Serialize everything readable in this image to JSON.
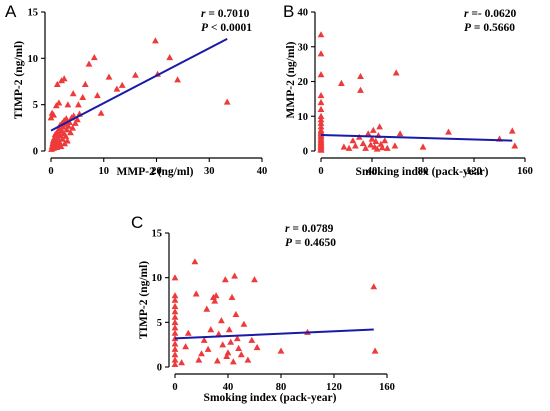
{
  "chart_data": [
    {
      "id": "A",
      "type": "scatter",
      "panel_label": "A",
      "xlabel": "MMP-2  (ng/ml)",
      "ylabel": "TIMP-2  (ng/ml)",
      "xlim": [
        0,
        40
      ],
      "ylim": [
        0,
        15
      ],
      "xticks": [
        0,
        10,
        20,
        30,
        40
      ],
      "yticks": [
        0,
        5,
        10,
        15
      ],
      "stats": {
        "r_label": "r",
        "r_value": " = 0.7010",
        "p_label": "P",
        "p_value": " < 0.0001"
      },
      "fit_line": {
        "x": [
          0,
          33.4
        ],
        "y": [
          2.2,
          12.1
        ]
      },
      "points": [
        [
          0.1,
          0.2
        ],
        [
          0.2,
          0.5
        ],
        [
          0.3,
          0.8
        ],
        [
          0.4,
          1.1
        ],
        [
          0.5,
          0.3
        ],
        [
          0.6,
          1.4
        ],
        [
          0.7,
          0.6
        ],
        [
          0.8,
          1.8
        ],
        [
          0.9,
          0.9
        ],
        [
          1.0,
          1.2
        ],
        [
          1.1,
          0.4
        ],
        [
          1.2,
          2.0
        ],
        [
          1.3,
          1.5
        ],
        [
          1.4,
          0.7
        ],
        [
          1.5,
          2.4
        ],
        [
          1.6,
          1.0
        ],
        [
          1.7,
          2.8
        ],
        [
          1.8,
          1.7
        ],
        [
          1.9,
          0.5
        ],
        [
          2.0,
          2.2
        ],
        [
          2.1,
          3.0
        ],
        [
          2.2,
          1.3
        ],
        [
          2.3,
          2.6
        ],
        [
          2.4,
          1.9
        ],
        [
          2.5,
          3.3
        ],
        [
          2.6,
          0.8
        ],
        [
          2.7,
          2.9
        ],
        [
          2.8,
          1.6
        ],
        [
          2.9,
          3.5
        ],
        [
          3.0,
          2.3
        ],
        [
          3.1,
          1.1
        ],
        [
          3.3,
          2.7
        ],
        [
          3.5,
          3.1
        ],
        [
          3.7,
          2.0
        ],
        [
          3.9,
          3.6
        ],
        [
          4.1,
          2.5
        ],
        [
          4.3,
          3.8
        ],
        [
          4.6,
          3.0
        ],
        [
          5.0,
          3.4
        ],
        [
          5.4,
          4.0
        ],
        [
          0.0,
          3.6
        ],
        [
          0.2,
          4.1
        ],
        [
          0.5,
          3.9
        ],
        [
          1.0,
          4.9
        ],
        [
          1.5,
          5.2
        ],
        [
          2.0,
          7.6
        ],
        [
          2.5,
          7.8
        ],
        [
          3.2,
          5.0
        ],
        [
          1.2,
          7.2
        ],
        [
          4.2,
          6.2
        ],
        [
          5.2,
          5.0
        ],
        [
          6.0,
          5.8
        ],
        [
          6.5,
          7.2
        ],
        [
          7.2,
          9.4
        ],
        [
          8.2,
          10.1
        ],
        [
          8.8,
          6.0
        ],
        [
          9.5,
          4.1
        ],
        [
          11.0,
          8.0
        ],
        [
          12.5,
          6.7
        ],
        [
          13.5,
          7.1
        ],
        [
          16.0,
          8.2
        ],
        [
          19.8,
          11.9
        ],
        [
          20.2,
          8.3
        ],
        [
          22.5,
          10.1
        ],
        [
          24.0,
          7.7
        ],
        [
          33.4,
          5.3
        ]
      ]
    },
    {
      "id": "B",
      "type": "scatter",
      "panel_label": "B",
      "xlabel": "Smoking index (pack-year)",
      "ylabel": "MMP-2  (ng/ml)",
      "xlim": [
        0,
        160
      ],
      "ylim": [
        0,
        40
      ],
      "xticks": [
        0,
        40,
        80,
        120,
        160
      ],
      "yticks": [
        0,
        10,
        20,
        30,
        40
      ],
      "stats": {
        "r_label": "r",
        "r_value": " =- 0.0620",
        "p_label": "P",
        "p_value": " = 0.5660"
      },
      "fit_line": {
        "x": [
          0,
          150
        ],
        "y": [
          4.6,
          3.0
        ]
      },
      "points": [
        [
          0,
          33.5
        ],
        [
          0,
          28
        ],
        [
          0,
          22
        ],
        [
          0,
          16
        ],
        [
          0,
          14
        ],
        [
          0,
          12
        ],
        [
          0,
          10
        ],
        [
          0,
          9
        ],
        [
          0,
          8
        ],
        [
          0,
          7
        ],
        [
          0,
          6
        ],
        [
          0,
          5.5
        ],
        [
          0,
          5
        ],
        [
          0,
          4.5
        ],
        [
          0,
          4
        ],
        [
          0,
          3.5
        ],
        [
          0,
          3
        ],
        [
          0,
          2.6
        ],
        [
          0,
          2.2
        ],
        [
          0,
          1.8
        ],
        [
          0,
          1.4
        ],
        [
          0,
          1.0
        ],
        [
          0,
          0.6
        ],
        [
          0,
          0.3
        ],
        [
          16,
          19.5
        ],
        [
          31,
          21.5
        ],
        [
          31,
          17.5
        ],
        [
          59,
          22.5
        ],
        [
          18,
          1.2
        ],
        [
          22,
          0.8
        ],
        [
          25,
          3.0
        ],
        [
          27,
          1.5
        ],
        [
          30,
          4.0
        ],
        [
          33,
          2.2
        ],
        [
          35,
          0.8
        ],
        [
          37,
          5.0
        ],
        [
          39,
          1.8
        ],
        [
          40,
          3.5
        ],
        [
          41,
          6.0
        ],
        [
          42,
          1.2
        ],
        [
          43,
          2.8
        ],
        [
          44,
          0.6
        ],
        [
          45,
          4.5
        ],
        [
          46,
          7.0
        ],
        [
          47,
          2.0
        ],
        [
          48,
          1.0
        ],
        [
          50,
          3.0
        ],
        [
          52,
          0.8
        ],
        [
          58,
          1.5
        ],
        [
          62,
          5.0
        ],
        [
          80,
          1.2
        ],
        [
          100,
          5.5
        ],
        [
          140,
          3.5
        ],
        [
          150,
          5.8
        ],
        [
          152,
          1.5
        ]
      ]
    },
    {
      "id": "C",
      "type": "scatter",
      "panel_label": "C",
      "xlabel": "Smoking index (pack-year)",
      "ylabel": "TIMP-2  (ng/ml)",
      "xlim": [
        0,
        160
      ],
      "ylim": [
        0,
        15
      ],
      "xticks": [
        0,
        40,
        80,
        120,
        160
      ],
      "yticks": [
        0,
        5,
        10,
        15
      ],
      "stats": {
        "r_label": "r",
        "r_value": " = 0.0789",
        "p_label": "P",
        "p_value": " = 0.4650"
      },
      "fit_line": {
        "x": [
          0,
          150
        ],
        "y": [
          3.2,
          4.2
        ]
      },
      "points": [
        [
          0,
          10
        ],
        [
          0,
          8
        ],
        [
          0,
          7.5
        ],
        [
          0,
          6.8
        ],
        [
          0,
          6.2
        ],
        [
          0,
          5.6
        ],
        [
          0,
          5.0
        ],
        [
          0,
          4.4
        ],
        [
          0,
          3.8
        ],
        [
          0,
          3.2
        ],
        [
          0,
          2.6
        ],
        [
          0,
          2.0
        ],
        [
          0,
          1.4
        ],
        [
          0,
          0.8
        ],
        [
          0,
          0.3
        ],
        [
          5,
          0.5
        ],
        [
          8,
          2.3
        ],
        [
          10,
          3.8
        ],
        [
          15,
          11.8
        ],
        [
          16,
          8.2
        ],
        [
          18,
          0.8
        ],
        [
          20,
          1.5
        ],
        [
          22,
          3.0
        ],
        [
          24,
          6.5
        ],
        [
          25,
          2.0
        ],
        [
          27,
          4.2
        ],
        [
          29,
          7.8
        ],
        [
          30,
          7.4
        ],
        [
          31,
          8.0
        ],
        [
          32,
          0.7
        ],
        [
          33,
          3.7
        ],
        [
          35,
          5.2
        ],
        [
          36,
          2.5
        ],
        [
          38,
          9.8
        ],
        [
          39,
          1.2
        ],
        [
          40,
          1.6
        ],
        [
          41,
          4.2
        ],
        [
          42,
          2.8
        ],
        [
          43,
          7.8
        ],
        [
          44,
          0.6
        ],
        [
          45,
          10.2
        ],
        [
          46,
          5.9
        ],
        [
          47,
          3.2
        ],
        [
          48,
          2.1
        ],
        [
          50,
          1.4
        ],
        [
          52,
          4.8
        ],
        [
          55,
          0.8
        ],
        [
          58,
          3.0
        ],
        [
          60,
          9.8
        ],
        [
          62,
          2.2
        ],
        [
          80,
          1.8
        ],
        [
          100,
          3.9
        ],
        [
          150,
          9.0
        ],
        [
          151,
          1.8
        ]
      ]
    }
  ]
}
